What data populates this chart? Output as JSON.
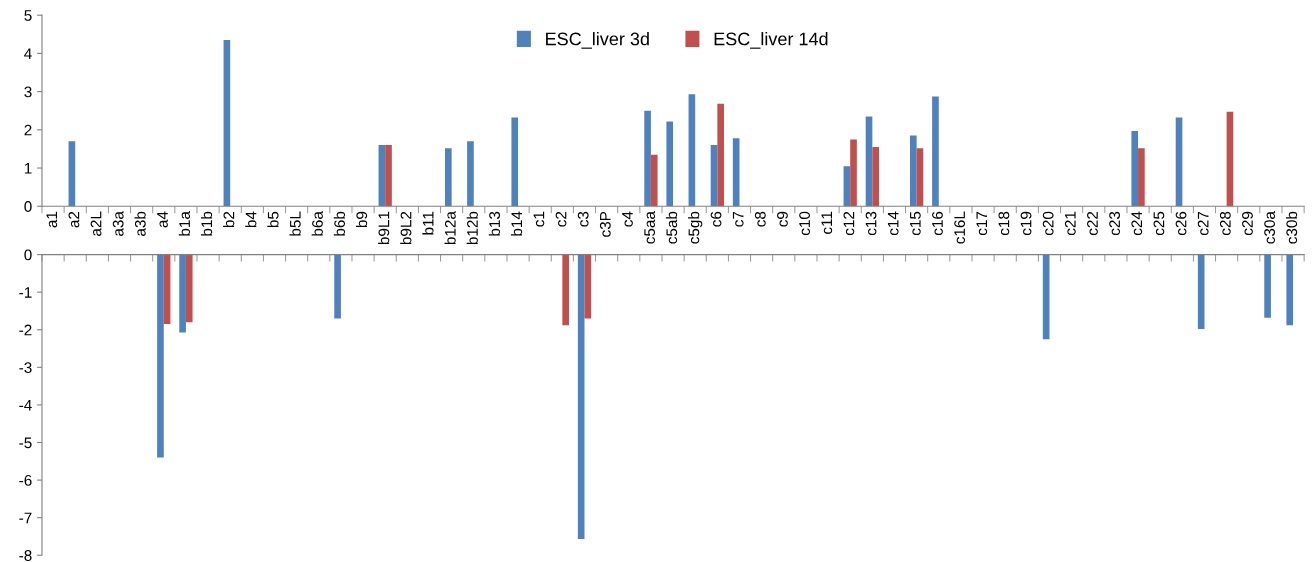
{
  "chart_data": [
    {
      "type": "bar",
      "categories": [
        "a1",
        "a2",
        "a2L",
        "a3a",
        "a3b",
        "a4",
        "b1a",
        "b1b",
        "b2",
        "b4",
        "b5",
        "b5L",
        "b6a",
        "b6b",
        "b9",
        "b9L1",
        "b9L2",
        "b11",
        "b12a",
        "b12b",
        "b13",
        "b14",
        "c1",
        "c2",
        "c3",
        "c3P",
        "c4",
        "c5aa",
        "c5ab",
        "c5gb",
        "c6",
        "c7",
        "c8",
        "c9",
        "c10",
        "c11",
        "c12",
        "c13",
        "c14",
        "c15",
        "c16",
        "c16L",
        "c17",
        "c18",
        "c19",
        "c20",
        "c21",
        "c22",
        "c23",
        "c24",
        "c25",
        "c26",
        "c27",
        "c28",
        "c29",
        "c30a",
        "c30b"
      ],
      "series": [
        {
          "name": "ESC_liver 3d",
          "color": "#4f81bd",
          "values": [
            null,
            1.7,
            null,
            null,
            null,
            null,
            null,
            null,
            4.35,
            null,
            null,
            null,
            null,
            null,
            null,
            1.6,
            null,
            null,
            1.52,
            1.7,
            null,
            2.32,
            null,
            null,
            null,
            null,
            null,
            2.5,
            2.22,
            2.93,
            1.6,
            1.78,
            null,
            null,
            null,
            null,
            1.05,
            2.35,
            null,
            1.85,
            2.87,
            null,
            null,
            null,
            null,
            null,
            null,
            null,
            null,
            1.97,
            null,
            2.32,
            null,
            null,
            null,
            null,
            null
          ]
        },
        {
          "name": "ESC_liver 14d",
          "color": "#c0504d",
          "values": [
            null,
            null,
            null,
            null,
            null,
            null,
            null,
            null,
            null,
            null,
            null,
            null,
            null,
            null,
            null,
            1.6,
            null,
            null,
            null,
            null,
            null,
            null,
            null,
            null,
            null,
            null,
            null,
            1.35,
            null,
            null,
            2.68,
            null,
            null,
            null,
            null,
            null,
            1.75,
            1.55,
            null,
            1.52,
            null,
            null,
            null,
            null,
            null,
            null,
            null,
            null,
            null,
            1.52,
            null,
            null,
            null,
            2.47,
            null,
            null,
            null
          ]
        }
      ],
      "ylim": [
        0,
        5
      ],
      "yticks": [
        0,
        1,
        2,
        3,
        4,
        5
      ],
      "grid": false,
      "legend": "top"
    },
    {
      "type": "bar",
      "categories": [
        null,
        null,
        null,
        null,
        null,
        null,
        null,
        null,
        null,
        null,
        null,
        null,
        null,
        null,
        null,
        null,
        null,
        null,
        null,
        null,
        null,
        null,
        null,
        null,
        null,
        null,
        null,
        null,
        null,
        null,
        null,
        null,
        null,
        null,
        null,
        null,
        null,
        null,
        null,
        null,
        null,
        null,
        null,
        null,
        null,
        null,
        null,
        null,
        null,
        null,
        null,
        null,
        null,
        null,
        null,
        null,
        null
      ],
      "series": [
        {
          "color": "#4f81bd",
          "values": [
            null,
            null,
            null,
            null,
            null,
            -5.4,
            -2.07,
            null,
            null,
            null,
            null,
            null,
            null,
            -1.7,
            null,
            null,
            null,
            null,
            null,
            null,
            null,
            null,
            null,
            null,
            -7.57,
            null,
            null,
            null,
            null,
            null,
            null,
            null,
            null,
            null,
            null,
            null,
            null,
            null,
            null,
            null,
            null,
            null,
            null,
            null,
            null,
            -2.25,
            null,
            null,
            null,
            null,
            null,
            null,
            -1.98,
            null,
            null,
            -1.68,
            -1.88
          ]
        },
        {
          "color": "#c0504d",
          "values": [
            null,
            null,
            null,
            null,
            null,
            -1.85,
            -1.8,
            null,
            null,
            null,
            null,
            null,
            null,
            null,
            null,
            null,
            null,
            null,
            null,
            null,
            null,
            null,
            null,
            -1.88,
            -1.7,
            null,
            null,
            null,
            null,
            null,
            null,
            null,
            null,
            null,
            null,
            null,
            null,
            null,
            null,
            null,
            null,
            null,
            null,
            null,
            null,
            null,
            null,
            null,
            null,
            null,
            null,
            null,
            null,
            null,
            null,
            null,
            null
          ]
        }
      ],
      "ylim": [
        -8,
        0
      ],
      "yticks": [
        -8,
        -7,
        -6,
        -5,
        -4,
        -3,
        -2,
        -1,
        0
      ],
      "grid": false,
      "tick_labels": "y"
    }
  ]
}
